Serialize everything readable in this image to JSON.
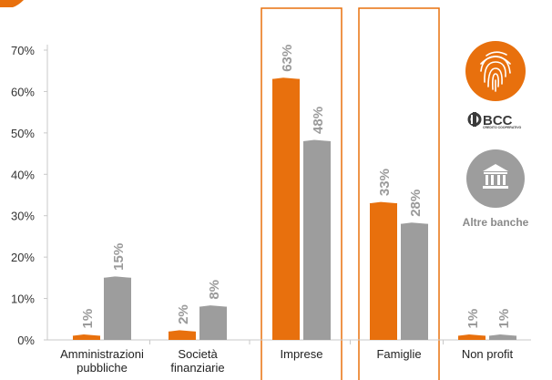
{
  "chart_data": {
    "type": "bar",
    "categories": [
      [
        "Amministrazioni",
        "pubbliche"
      ],
      [
        "Società",
        "finanziarie"
      ],
      [
        "Imprese"
      ],
      [
        "Famiglie"
      ],
      [
        "Non profit"
      ]
    ],
    "series": [
      {
        "values": [
          1,
          2,
          63,
          33,
          1
        ],
        "labels": [
          "1%",
          "2%",
          "63%",
          "33%",
          "1%"
        ],
        "color": "#e8700d"
      },
      {
        "values": [
          15,
          8,
          48,
          28,
          1
        ],
        "labels": [
          "15%",
          "8%",
          "48%",
          "28%",
          "1%"
        ],
        "color": "#9d9d9d"
      }
    ],
    "ylim": [
      0,
      70
    ],
    "yticks": [
      "0%",
      "10%",
      "20%",
      "30%",
      "40%",
      "50%",
      "60%",
      "70%"
    ],
    "highlighted_categories": [
      "Imprese",
      "Famiglie"
    ],
    "highlight_color": "#e8700d",
    "legend": {
      "bcc_logo_text": "BCC",
      "bcc_logo_subtext": "CREDITO COOPERATIVO",
      "altre_banche": "Altre banche"
    }
  }
}
